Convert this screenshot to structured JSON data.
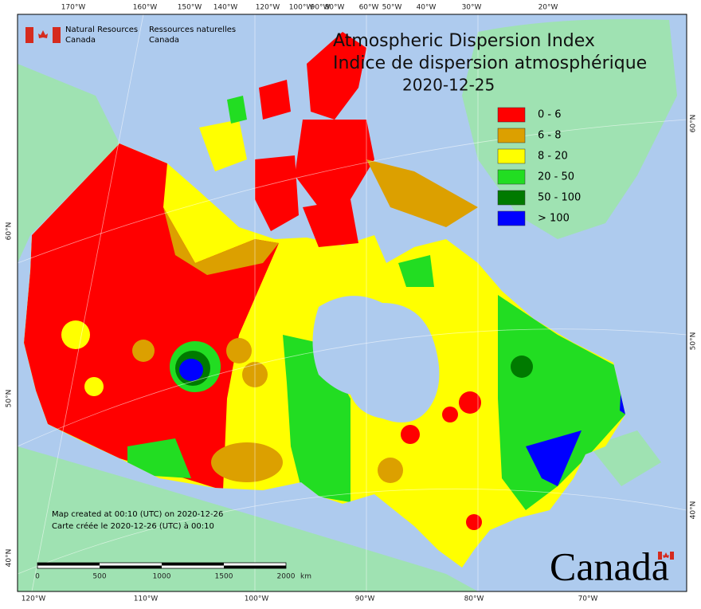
{
  "header": {
    "agency_en": [
      "Natural Resources",
      "Canada"
    ],
    "agency_fr": [
      "Ressources naturelles",
      "Canada"
    ]
  },
  "title": {
    "en": "Atmospheric Dispersion Index",
    "fr": "Indice de dispersion atmosphérique",
    "date": "2020-12-25"
  },
  "legend": [
    {
      "label": "0 - 6",
      "color": "#ff0000"
    },
    {
      "label": "6 - 8",
      "color": "#dca000"
    },
    {
      "label": "8 - 20",
      "color": "#ffff00"
    },
    {
      "label": "20 - 50",
      "color": "#22dd22"
    },
    {
      "label": "50 - 100",
      "color": "#007a00"
    },
    {
      "label": "> 100",
      "color": "#0000ff"
    }
  ],
  "top_labels": [
    "170°W",
    "160°W",
    "150°W",
    "140°W",
    "120°W",
    "100°W",
    "90°W",
    "80°W",
    "60°W",
    "50°W",
    "40°W",
    "30°W",
    "20°W"
  ],
  "bottom_labels": [
    "120°W",
    "110°W",
    "100°W",
    "90°W",
    "80°W",
    "70°W"
  ],
  "left_labels": [
    "60°N",
    "50°N",
    "40°N"
  ],
  "right_labels": [
    "60°N",
    "50°N",
    "40°N"
  ],
  "footer": [
    "Map created at 00:10 (UTC) on 2020-12-26",
    "Carte créée le 2020-12-26 (UTC) à 00:10"
  ],
  "scale": {
    "ticks": [
      "0",
      "500",
      "1000",
      "1500",
      "2000"
    ],
    "unit": "km"
  },
  "wordmark": "Canada"
}
